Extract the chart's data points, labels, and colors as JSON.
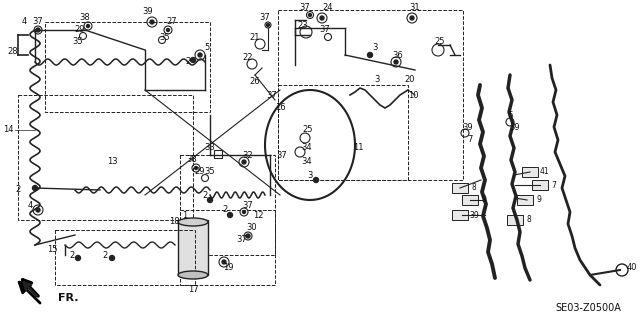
{
  "bg_color": "#ffffff",
  "diagram_code": "SE03-Z0500A",
  "fr_label": "FR.",
  "fig_width": 6.4,
  "fig_height": 3.19,
  "dpi": 100,
  "line_color": "#222222",
  "label_color": "#111111",
  "label_fontsize": 6.0
}
